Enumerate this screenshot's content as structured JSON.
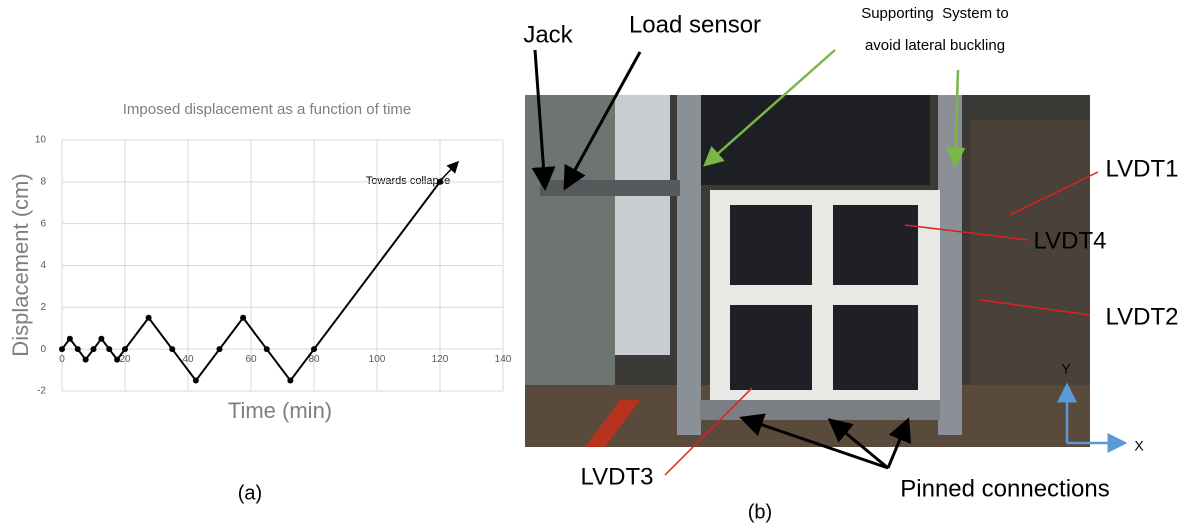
{
  "chart_data": {
    "type": "line",
    "title": "Imposed displacement as a function of time",
    "x_label": "Time (min)",
    "y_label": "Displacement (cm)",
    "annotation": "Towards collapse",
    "x": [
      0,
      2.5,
      5,
      7.5,
      10,
      12.5,
      15,
      17.5,
      20,
      27.5,
      35,
      42.5,
      50,
      57.5,
      65,
      72.5,
      80,
      120
    ],
    "series": [
      {
        "color": "#000000",
        "values": [
          0,
          0.5,
          0,
          -0.5,
          0,
          0.5,
          0,
          -0.5,
          0,
          1.5,
          0,
          -1.5,
          0,
          1.5,
          0,
          -1.5,
          0,
          8
        ]
      }
    ],
    "xlim": [
      0,
      140
    ],
    "xticks": [
      0,
      20,
      40,
      60,
      80,
      100,
      120,
      140
    ],
    "ylim": [
      -2,
      10
    ],
    "yticks": [
      -2,
      0,
      2,
      4,
      6,
      8,
      10
    ],
    "grid": true
  },
  "photo": {
    "jack": "Jack",
    "load_sensor": "Load sensor",
    "support": [
      "Supporting  System to",
      "avoid lateral buckling"
    ],
    "lvdt1": "LVDT1",
    "lvdt4": "LVDT4",
    "lvdt2": "LVDT2",
    "lvdt3": "LVDT3",
    "pinned": "Pinned connections",
    "axis_y": "Y",
    "axis_x": "X"
  },
  "captions": [
    "(a)",
    "(b)"
  ]
}
